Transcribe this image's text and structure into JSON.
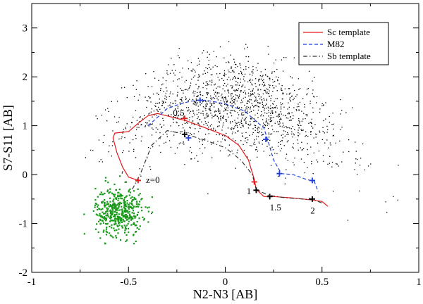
{
  "chart_data": {
    "type": "scatter",
    "title": "",
    "xlabel": "N2-N3 [AB]",
    "ylabel": "S7-S11 [AB]",
    "xlim": [
      -1,
      1
    ],
    "ylim": [
      -2,
      3.5
    ],
    "xticks": [
      -1,
      -0.5,
      0,
      0.5,
      1
    ],
    "xtick_labels": [
      "-1",
      "-0.5",
      "0",
      "0.5",
      "1"
    ],
    "yticks": [
      -2,
      -1,
      0,
      1,
      2,
      3
    ],
    "ytick_labels": [
      "-2",
      "-1",
      "0",
      "1",
      "2",
      "3"
    ],
    "grid": false,
    "legend_position": "top-right",
    "legend": [
      {
        "label": "Sc template",
        "color": "#e41a1c",
        "style": "solid"
      },
      {
        "label": "M82",
        "color": "#1f3fd6",
        "style": "dashed"
      },
      {
        "label": "Sb template",
        "color": "#333333",
        "style": "dash-dot"
      }
    ],
    "scatter_black": {
      "color": "#000000",
      "count": 1500,
      "center": [
        0.05,
        0.9
      ],
      "spread": [
        0.28,
        0.75
      ],
      "x_range": [
        -0.8,
        0.9
      ],
      "y_range": [
        -1.8,
        3.0
      ]
    },
    "scatter_green": {
      "color": "#1a9a1a",
      "count": 450,
      "center": [
        -0.55,
        -0.75
      ],
      "spread": [
        0.06,
        0.25
      ]
    },
    "series": [
      {
        "name": "Sc template",
        "color": "#e41a1c",
        "x": [
          -0.45,
          -0.5,
          -0.53,
          -0.56,
          -0.58,
          -0.57,
          -0.5,
          -0.45,
          -0.4,
          -0.35,
          -0.3,
          -0.2,
          -0.1,
          0.0,
          0.07,
          0.12,
          0.15,
          0.16,
          0.2,
          0.25,
          0.35,
          0.45,
          0.5,
          0.53
        ],
        "y": [
          -0.12,
          -0.05,
          0.15,
          0.45,
          0.75,
          0.85,
          0.88,
          1.05,
          1.2,
          1.25,
          1.2,
          1.1,
          0.95,
          0.8,
          0.6,
          0.3,
          -0.1,
          -0.3,
          -0.45,
          -0.45,
          -0.48,
          -0.52,
          -0.55,
          -0.65
        ]
      },
      {
        "name": "M82",
        "color": "#1f3fd6",
        "x": [
          -0.4,
          -0.37,
          -0.3,
          -0.23,
          -0.18,
          -0.14,
          -0.1,
          0.0,
          0.1,
          0.2,
          0.22,
          0.25,
          0.29,
          0.35,
          0.42,
          0.46,
          0.48
        ],
        "y": [
          1.0,
          1.1,
          1.35,
          1.45,
          1.5,
          1.52,
          1.52,
          1.45,
          1.3,
          0.95,
          0.7,
          0.3,
          0.02,
          0.0,
          -0.1,
          -0.14,
          -0.35
        ]
      },
      {
        "name": "Sb template",
        "color": "#333333",
        "x": [
          -0.48,
          -0.44,
          -0.38,
          -0.3,
          -0.2,
          -0.1,
          0.0,
          0.08,
          0.14,
          0.16,
          0.22,
          0.3,
          0.4,
          0.46,
          0.5
        ],
        "y": [
          -0.3,
          0.0,
          0.6,
          0.9,
          0.82,
          0.7,
          0.55,
          0.3,
          0.0,
          -0.3,
          -0.42,
          -0.47,
          -0.5,
          -0.52,
          -0.58
        ]
      }
    ],
    "markers": [
      {
        "series": "Sc template",
        "color": "#e41a1c",
        "points": [
          [
            -0.45,
            -0.12
          ],
          [
            -0.21,
            1.15
          ],
          [
            0.15,
            -0.15
          ]
        ]
      },
      {
        "series": "M82",
        "color": "#1f3fd6",
        "points": [
          [
            -0.13,
            1.52
          ],
          [
            -0.19,
            0.75
          ],
          [
            0.21,
            0.72
          ],
          [
            0.28,
            0.02
          ],
          [
            0.45,
            -0.12
          ]
        ]
      },
      {
        "series": "Sb template",
        "color": "#000000",
        "points": [
          [
            -0.21,
            0.82
          ],
          [
            0.16,
            -0.32
          ],
          [
            0.23,
            -0.45
          ],
          [
            0.45,
            -0.5
          ]
        ]
      }
    ],
    "annotations": [
      {
        "text": "z=0",
        "x": -0.41,
        "y": -0.17
      },
      {
        "text": "0.5",
        "x": -0.27,
        "y": 1.2
      },
      {
        "text": "1",
        "x": 0.11,
        "y": -0.4
      },
      {
        "text": "1.5",
        "x": 0.23,
        "y": -0.73
      },
      {
        "text": "2",
        "x": 0.44,
        "y": -0.8
      }
    ]
  }
}
